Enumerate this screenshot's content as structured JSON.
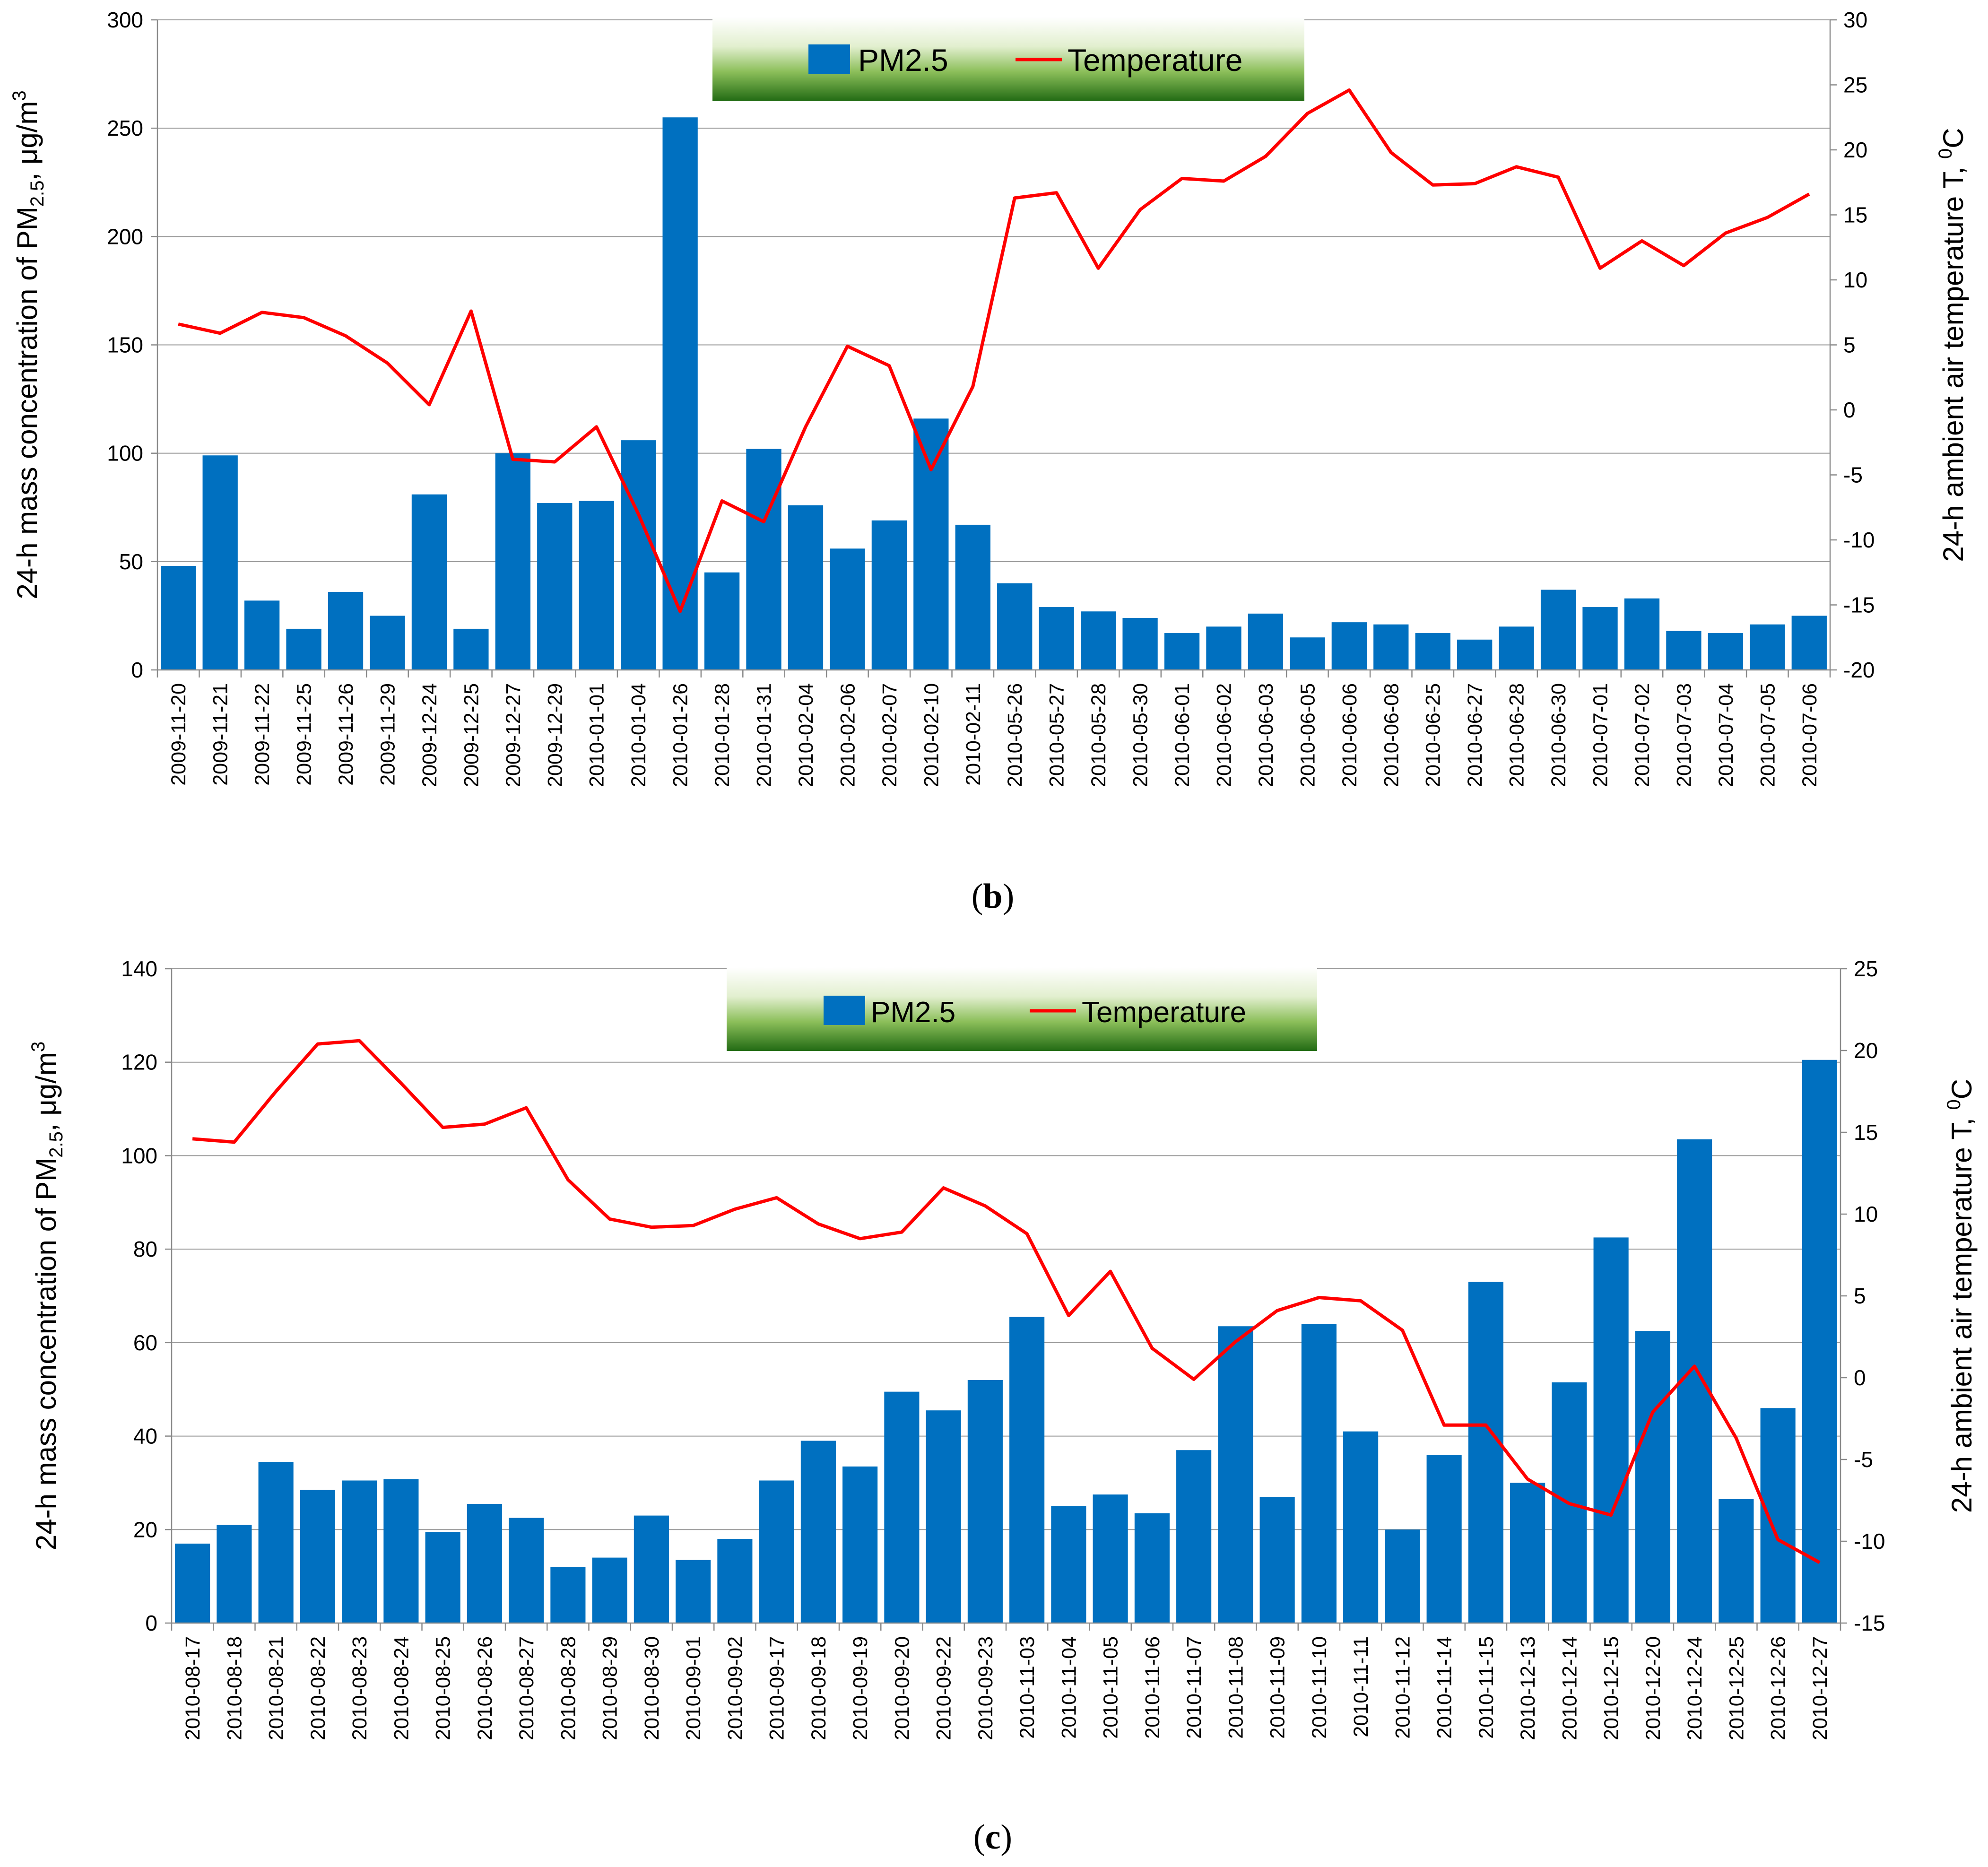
{
  "chart_data": [
    {
      "type": "bar+line",
      "panel_label": "b",
      "legend": {
        "bar": "PM2.5",
        "line": "Temperature"
      },
      "ylabel_left": "24-h mass concentration of PM",
      "ylabel_left_sub": "2.5",
      "ylabel_left_unit": ", μg/m",
      "ylabel_left_sup": "3",
      "ylabel_right": "24-h ambient air temperature T, ",
      "ylabel_right_sup": "0",
      "ylabel_right_unit": "C",
      "ylim_left": [
        0,
        300
      ],
      "ylim_right": [
        -20,
        30
      ],
      "yticks_left": [
        "0",
        "50",
        "100",
        "150",
        "200",
        "250",
        "300"
      ],
      "yticks_right": [
        "-20",
        "-15",
        "-10",
        "-5",
        "0",
        "5",
        "10",
        "15",
        "20",
        "25",
        "30"
      ],
      "categories": [
        "2009-11-20",
        "2009-11-21",
        "2009-11-22",
        "2009-11-25",
        "2009-11-26",
        "2009-11-29",
        "2009-12-24",
        "2009-12-25",
        "2009-12-27",
        "2009-12-29",
        "2010-01-01",
        "2010-01-04",
        "2010-01-26",
        "2010-01-28",
        "2010-01-31",
        "2010-02-04",
        "2010-02-06",
        "2010-02-07",
        "2010-02-10",
        "2010-02-11",
        "2010-05-26",
        "2010-05-27",
        "2010-05-28",
        "2010-05-30",
        "2010-06-01",
        "2010-06-02",
        "2010-06-03",
        "2010-06-05",
        "2010-06-06",
        "2010-06-08",
        "2010-06-25",
        "2010-06-27",
        "2010-06-28",
        "2010-06-30",
        "2010-07-01",
        "2010-07-02",
        "2010-07-03",
        "2010-07-04",
        "2010-07-05",
        "2010-07-06"
      ],
      "series": [
        {
          "name": "PM2.5",
          "axis": "left",
          "values": [
            48,
            99,
            32,
            19,
            36,
            25,
            81,
            19,
            100,
            77,
            78,
            106,
            255,
            45,
            102,
            76,
            56,
            69,
            116,
            67,
            40,
            29,
            27,
            24,
            17,
            20,
            26,
            15,
            22,
            21,
            17,
            14,
            20,
            37,
            29,
            33,
            18,
            17,
            21,
            25
          ]
        },
        {
          "name": "Temperature",
          "axis": "right",
          "values": [
            6.6,
            5.9,
            7.5,
            7.1,
            5.7,
            3.6,
            0.4,
            7.6,
            -3.8,
            -4.0,
            -1.3,
            -8.0,
            -15.5,
            -7.0,
            -8.6,
            -1.3,
            4.9,
            3.4,
            -4.6,
            1.8,
            16.3,
            16.7,
            10.9,
            15.4,
            17.8,
            17.6,
            19.5,
            22.8,
            24.6,
            19.8,
            17.3,
            17.4,
            18.7,
            17.9,
            10.9,
            13.0,
            11.1,
            13.6,
            14.8,
            16.6
          ]
        }
      ]
    },
    {
      "type": "bar+line",
      "panel_label": "c",
      "legend": {
        "bar": "PM2.5",
        "line": "Temperature"
      },
      "ylabel_left": "24-h mass concentration of PM",
      "ylabel_left_sub": "2.5",
      "ylabel_left_unit": ", μg/m",
      "ylabel_left_sup": "3",
      "ylabel_right": "24-h ambient air temperature T, ",
      "ylabel_right_sup": "0",
      "ylabel_right_unit": "C",
      "ylim_left": [
        0,
        140
      ],
      "ylim_right": [
        -15,
        25
      ],
      "yticks_left": [
        "0",
        "20",
        "40",
        "60",
        "80",
        "100",
        "120",
        "140"
      ],
      "yticks_right": [
        "-15",
        "-10",
        "-5",
        "0",
        "5",
        "10",
        "15",
        "20",
        "25"
      ],
      "categories": [
        "2010-08-17",
        "2010-08-18",
        "2010-08-21",
        "2010-08-22",
        "2010-08-23",
        "2010-08-24",
        "2010-08-25",
        "2010-08-26",
        "2010-08-27",
        "2010-08-28",
        "2010-08-29",
        "2010-08-30",
        "2010-09-01",
        "2010-09-02",
        "2010-09-17",
        "2010-09-18",
        "2010-09-19",
        "2010-09-20",
        "2010-09-22",
        "2010-09-23",
        "2010-11-03",
        "2010-11-04",
        "2010-11-05",
        "2010-11-06",
        "2010-11-07",
        "2010-11-08",
        "2010-11-09",
        "2010-11-10",
        "2010-11-11",
        "2010-11-12",
        "2010-11-14",
        "2010-11-15",
        "2010-12-13",
        "2010-12-14",
        "2010-12-15",
        "2010-12-20",
        "2010-12-24",
        "2010-12-25",
        "2010-12-26",
        "2010-12-27"
      ],
      "series": [
        {
          "name": "PM2.5",
          "axis": "left",
          "values": [
            17,
            21,
            34.5,
            28.5,
            30.5,
            30.8,
            19.5,
            25.5,
            22.5,
            12,
            14,
            23,
            13.5,
            18,
            30.5,
            39,
            33.5,
            49.5,
            45.5,
            52,
            65.5,
            25,
            27.5,
            23.5,
            37,
            63.5,
            27,
            64,
            41,
            20,
            36,
            73,
            30,
            51.5,
            82.5,
            62.5,
            103.5,
            26.5,
            46,
            120.5
          ]
        },
        {
          "name": "Temperature",
          "axis": "right",
          "values": [
            14.6,
            14.4,
            17.5,
            20.4,
            20.6,
            18.0,
            15.3,
            15.5,
            16.5,
            12.1,
            9.7,
            9.2,
            9.3,
            10.3,
            11.0,
            9.4,
            8.5,
            8.9,
            11.6,
            10.5,
            8.8,
            3.8,
            6.5,
            1.8,
            -0.1,
            2.2,
            4.1,
            4.9,
            4.7,
            2.9,
            -2.9,
            -2.9,
            -6.2,
            -7.7,
            -8.4,
            -2.1,
            0.7,
            -3.7,
            -9.9,
            -11.3
          ]
        }
      ]
    }
  ]
}
